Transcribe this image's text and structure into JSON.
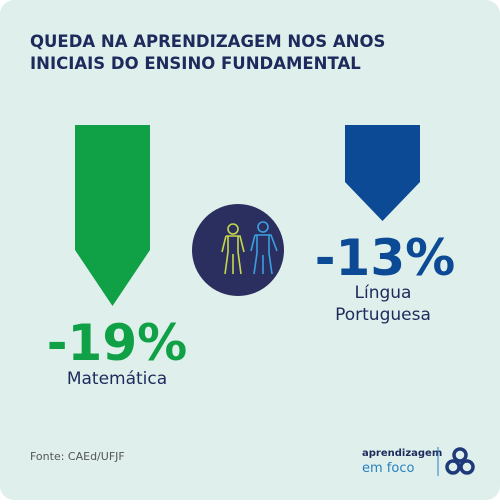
{
  "header": {
    "title_lines": [
      "QUEDA NA APRENDIZAGEM NOS ANOS",
      "INICIAIS DO ENSINO FUNDAMENTAL"
    ]
  },
  "items": [
    {
      "value": "-19%",
      "subject": [
        "Matemática"
      ]
    },
    {
      "value": "-13%",
      "subject": [
        "Língua",
        "Portuguesa"
      ]
    }
  ],
  "footer": {
    "source": "Fonte: CAEd/UFJF",
    "brand_top": "aprendizagem",
    "brand_bottom": "em foco"
  }
}
